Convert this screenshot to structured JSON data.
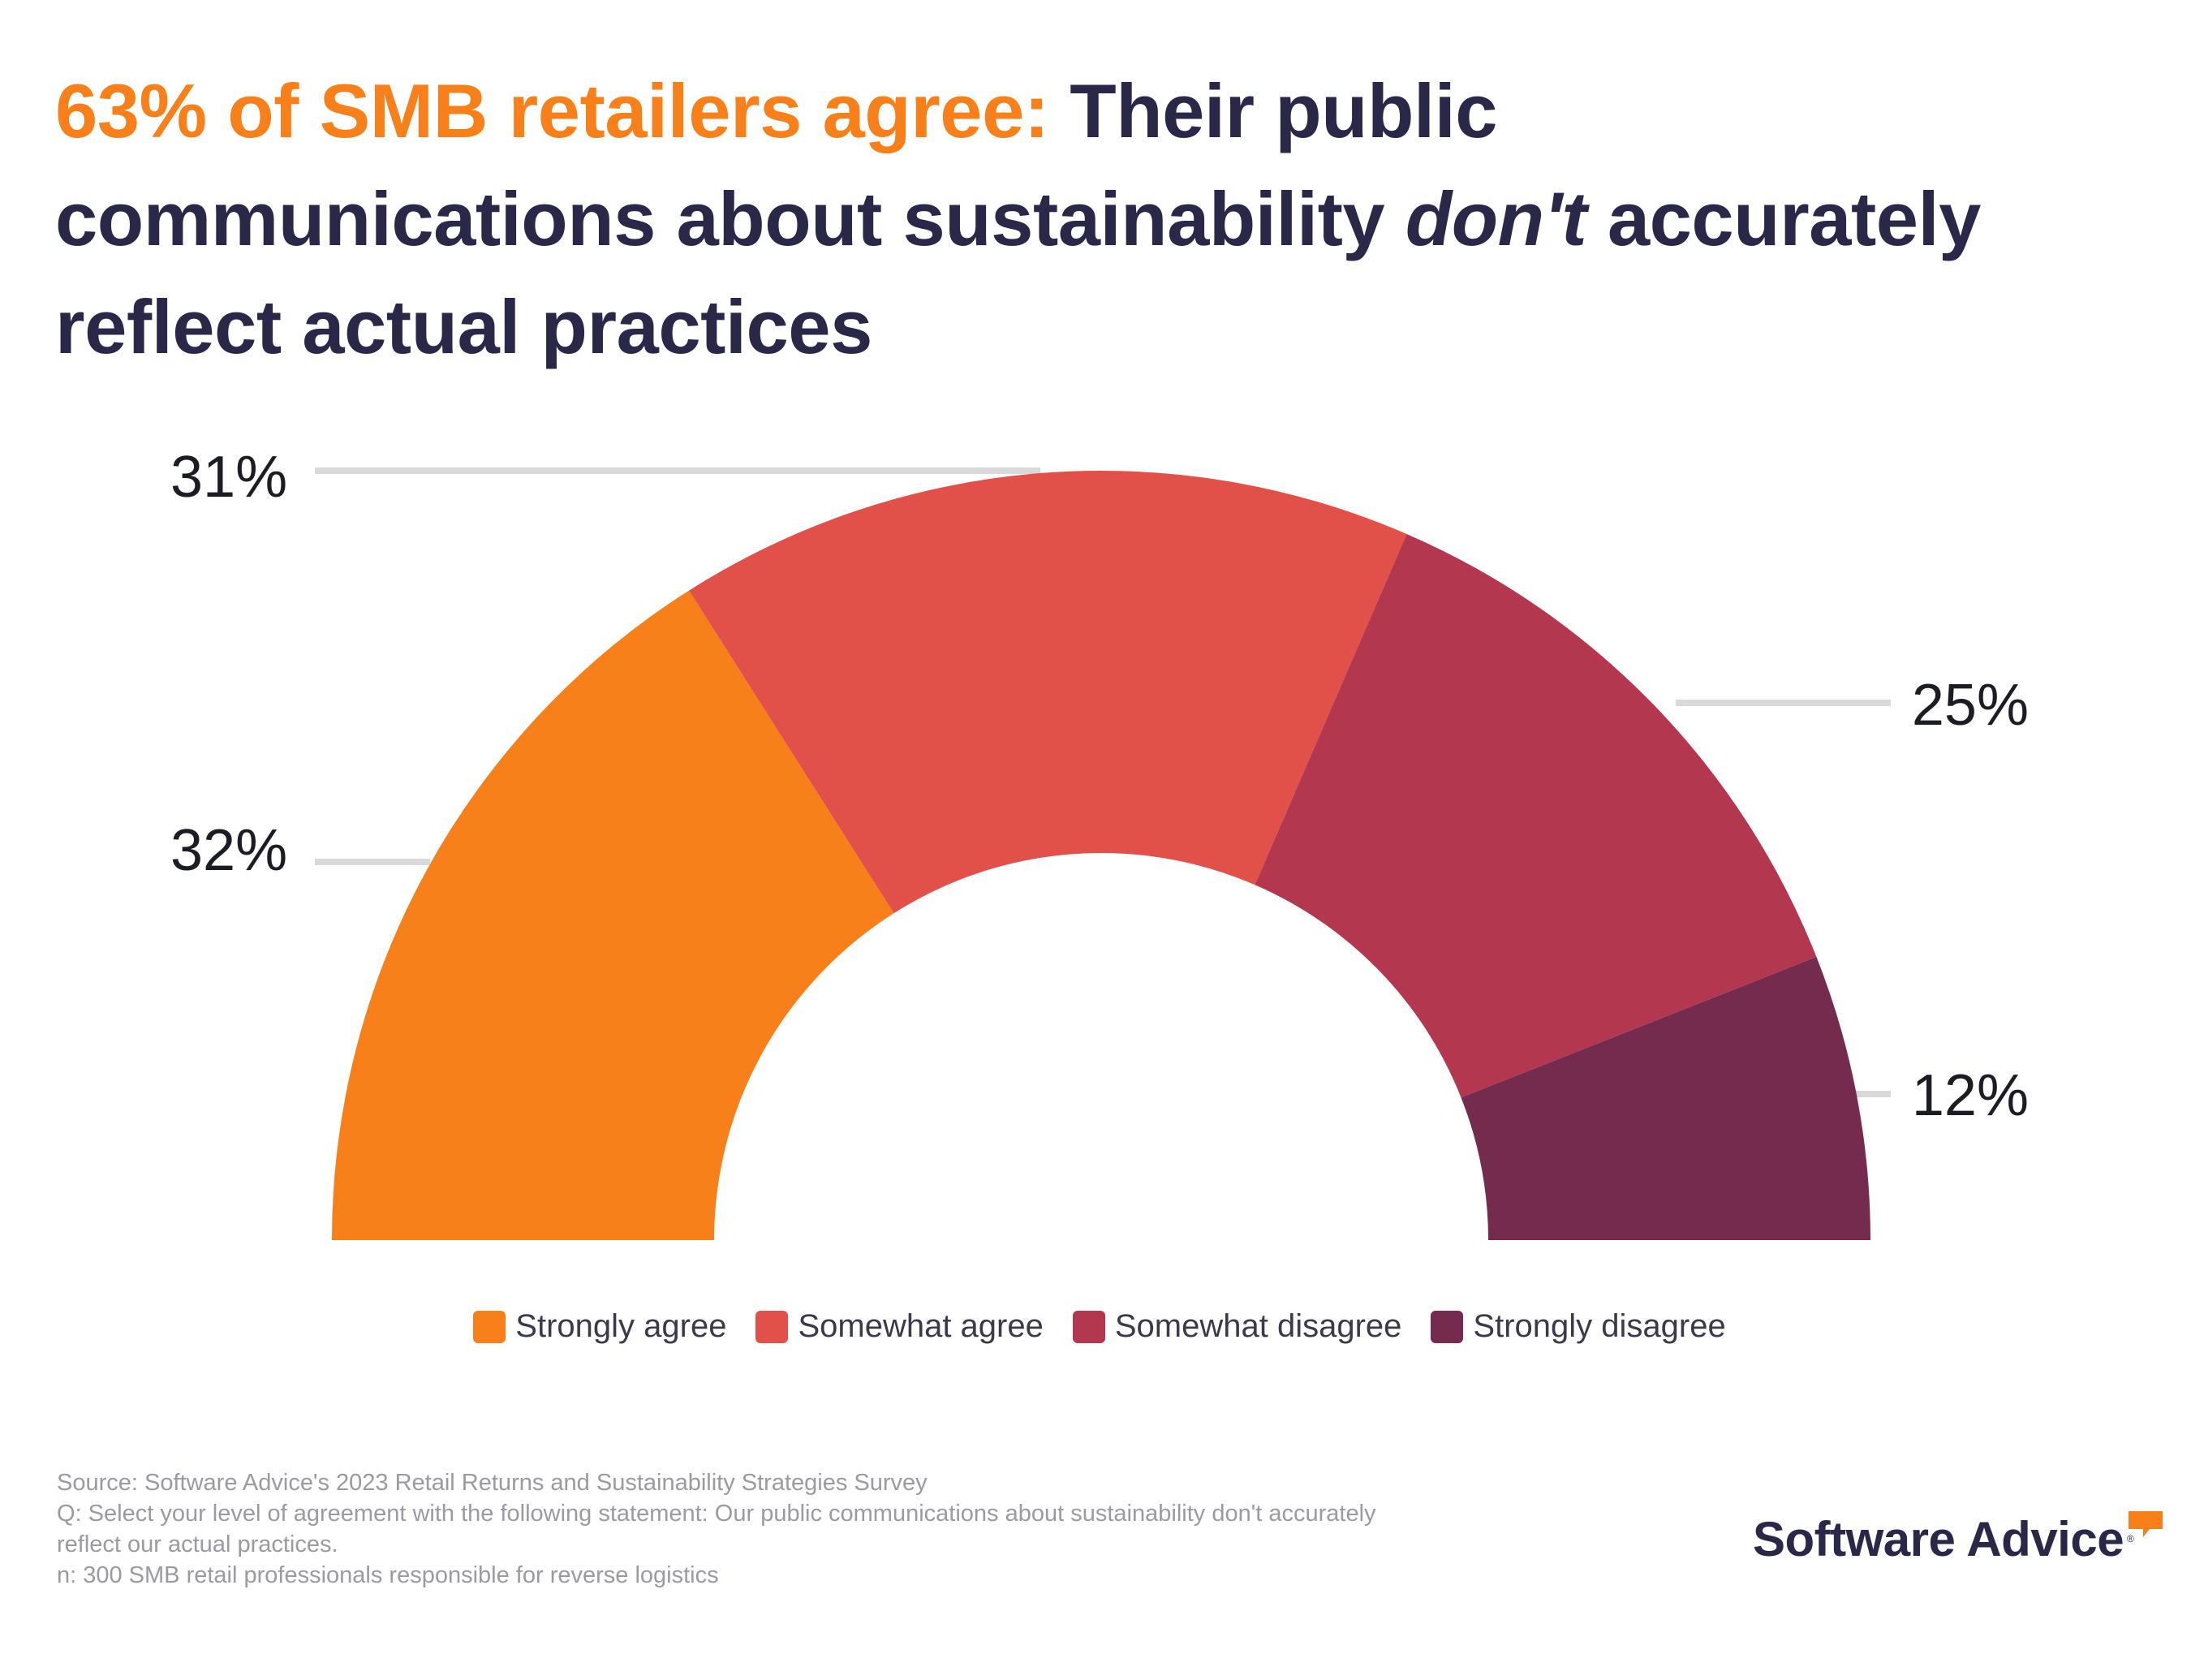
{
  "headline": {
    "highlight": "63% of SMB retailers agree:",
    "text_before_em": " Their public communications about sustainability ",
    "emphasis": "don't",
    "text_after_em": " accurately reflect actual practices"
  },
  "colors": {
    "strongly_agree": "#f7801b",
    "somewhat_agree": "#e25149",
    "somewhat_disagree": "#b3374f",
    "strongly_disagree": "#752b4d",
    "leader_line": "#d9d9d9",
    "headline_accent": "#f7801b",
    "headline_text": "#2a2848"
  },
  "chart_data": {
    "type": "pie",
    "subtype": "semi-donut",
    "categories": [
      "Strongly agree",
      "Somewhat agree",
      "Somewhat disagree",
      "Strongly disagree"
    ],
    "values": [
      32,
      31,
      25,
      12
    ],
    "value_labels": [
      "32%",
      "31%",
      "25%",
      "12%"
    ],
    "unit": "%",
    "legend_position": "bottom"
  },
  "legend": {
    "items": [
      {
        "label": "Strongly agree",
        "color": "#f7801b"
      },
      {
        "label": "Somewhat agree",
        "color": "#e25149"
      },
      {
        "label": "Somewhat disagree",
        "color": "#b3374f"
      },
      {
        "label": "Strongly disagree",
        "color": "#752b4d"
      }
    ]
  },
  "footnote": {
    "source": "Source: Software Advice's 2023 Retail Returns and Sustainability Strategies Survey",
    "question_line1": "Q: Select your level of agreement with the following statement: Our public communications about sustainability don't accurately",
    "question_line2": "reflect our actual practices.",
    "sample": "n: 300 SMB retail professionals responsible for reverse logistics"
  },
  "brand": {
    "name": "Software Advice",
    "icon": "speech-bubble-icon",
    "registered_mark": "®"
  }
}
